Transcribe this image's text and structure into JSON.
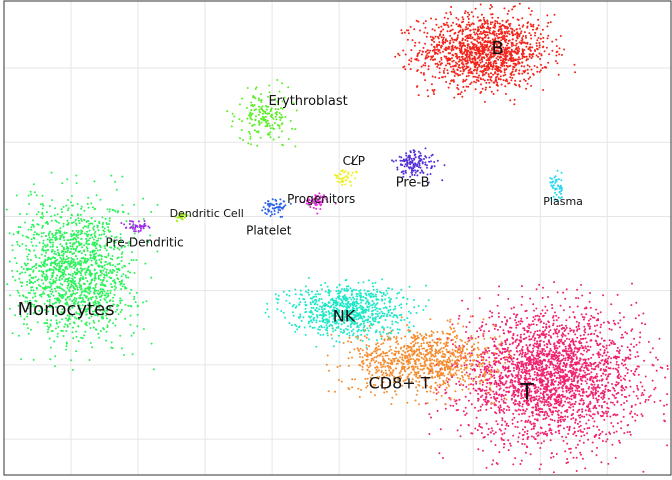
{
  "chart_data": {
    "type": "scatter",
    "title": "",
    "xlabel": "",
    "ylabel": "",
    "grid": true,
    "legend": "none",
    "xlim": [
      -2.9,
      17.5
    ],
    "ylim": [
      -7.4,
      12.4
    ],
    "x_gridlines": [
      -0.85,
      1.2,
      3.25,
      5.3,
      7.35,
      9.4,
      11.45,
      13.5,
      15.55
    ],
    "y_gridlines": [
      -5.9,
      -2.8,
      0.3,
      3.4,
      6.5,
      9.6,
      12.7
    ],
    "clusters": [
      {
        "name": "B",
        "color": "#f2241b",
        "cx": 11.8,
        "cy": 10.3,
        "rx": 1.8,
        "ry": 1.4,
        "count": 1400
      },
      {
        "name": "T",
        "color": "#f0226f",
        "cx": 13.8,
        "cy": -3.3,
        "rx": 2.5,
        "ry": 2.5,
        "count": 2600
      },
      {
        "name": "CD8+ T",
        "color": "#f58c2e",
        "cx": 9.9,
        "cy": -2.6,
        "rx": 2.0,
        "ry": 1.2,
        "count": 900
      },
      {
        "name": "NK",
        "color": "#1de8c8",
        "cx": 7.6,
        "cy": -0.5,
        "rx": 1.6,
        "ry": 1.0,
        "count": 800
      },
      {
        "name": "Monocytes",
        "color": "#2bf25a",
        "cx": -0.7,
        "cy": 1.1,
        "rx": 1.6,
        "ry": 2.6,
        "count": 1500
      },
      {
        "name": "Erythroblast",
        "color": "#5aee24",
        "cx": 5.1,
        "cy": 7.6,
        "rx": 0.8,
        "ry": 1.0,
        "count": 180
      },
      {
        "name": "Pre-B",
        "color": "#5530d8",
        "cx": 9.7,
        "cy": 5.6,
        "rx": 0.6,
        "ry": 0.5,
        "count": 140
      },
      {
        "name": "Plasma",
        "color": "#2ad7f0",
        "cx": 14.0,
        "cy": 4.7,
        "rx": 0.2,
        "ry": 0.6,
        "count": 50
      },
      {
        "name": "Platelet",
        "color": "#2a62e8",
        "cx": 5.4,
        "cy": 3.8,
        "rx": 0.35,
        "ry": 0.3,
        "count": 60
      },
      {
        "name": "Progenitors",
        "color": "#e32ad9",
        "cx": 6.7,
        "cy": 4.0,
        "rx": 0.35,
        "ry": 0.3,
        "count": 60
      },
      {
        "name": "CLP",
        "color": "#eef01a",
        "cx": 7.5,
        "cy": 5.0,
        "rx": 0.35,
        "ry": 0.35,
        "count": 40
      },
      {
        "name": "Pre-Dendritic",
        "color": "#9d2ee8",
        "cx": 1.2,
        "cy": 3.0,
        "rx": 0.35,
        "ry": 0.2,
        "count": 45
      },
      {
        "name": "Dendritic Cell",
        "color": "#a4f01a",
        "cx": 2.5,
        "cy": 3.4,
        "rx": 0.2,
        "ry": 0.15,
        "count": 25
      }
    ],
    "labels": [
      {
        "text": "B",
        "x": 12.2,
        "y": 10.4,
        "size": 18
      },
      {
        "text": "T",
        "x": 13.1,
        "y": -4.0,
        "size": 22
      },
      {
        "text": "CD8+ T",
        "x": 9.2,
        "y": -3.6,
        "size": 16
      },
      {
        "text": "NK",
        "x": 7.5,
        "y": -0.8,
        "size": 16
      },
      {
        "text": "Monocytes",
        "x": -1.0,
        "y": -0.5,
        "size": 18
      },
      {
        "text": "Erythroblast",
        "x": 6.4,
        "y": 8.2,
        "size": 13
      },
      {
        "text": "Pre-B",
        "x": 9.6,
        "y": 4.8,
        "size": 13
      },
      {
        "text": "Plasma",
        "x": 14.2,
        "y": 4.0,
        "size": 11
      },
      {
        "text": "Platelet",
        "x": 5.2,
        "y": 2.8,
        "size": 12
      },
      {
        "text": "Progenitors",
        "x": 6.8,
        "y": 4.1,
        "size": 12
      },
      {
        "text": "CLP",
        "x": 7.8,
        "y": 5.7,
        "size": 12
      },
      {
        "text": "Pre-Dendritic",
        "x": 1.4,
        "y": 2.3,
        "size": 12
      },
      {
        "text": "Dendritic Cell",
        "x": 3.3,
        "y": 3.5,
        "size": 11
      }
    ]
  }
}
